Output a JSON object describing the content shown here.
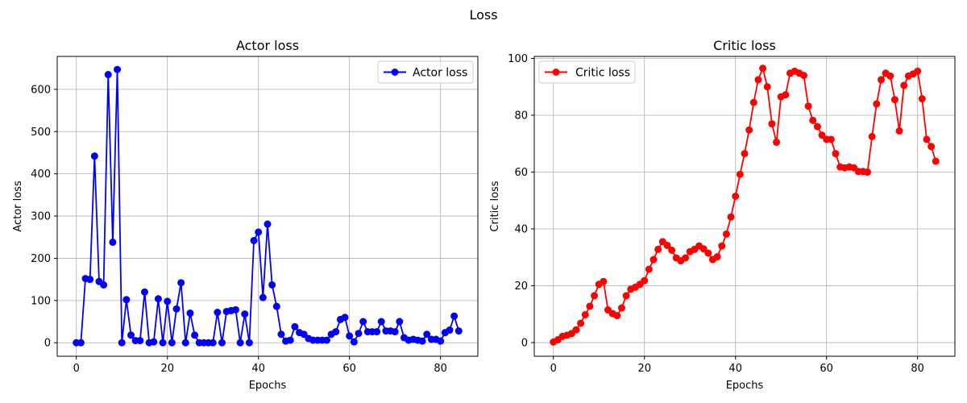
{
  "figure": {
    "suptitle": "Loss"
  },
  "chart_data": [
    {
      "type": "line",
      "title": "Actor loss",
      "xlabel": "Epochs",
      "ylabel": "Actor loss",
      "xlim": [
        -4.2,
        88.2
      ],
      "ylim": [
        -32,
        678
      ],
      "xticks": [
        0,
        20,
        40,
        60,
        80
      ],
      "yticks": [
        0,
        100,
        200,
        300,
        400,
        500,
        600
      ],
      "grid": true,
      "legend_position": "upper right",
      "series": [
        {
          "name": "Actor loss",
          "color": "#0000ff",
          "marker": "circle",
          "x": [
            0,
            1,
            2,
            3,
            4,
            5,
            6,
            7,
            8,
            9,
            10,
            11,
            12,
            13,
            14,
            15,
            16,
            17,
            18,
            19,
            20,
            21,
            22,
            23,
            24,
            25,
            26,
            27,
            28,
            29,
            30,
            31,
            32,
            33,
            34,
            35,
            36,
            37,
            38,
            39,
            40,
            41,
            42,
            43,
            44,
            45,
            46,
            47,
            48,
            49,
            50,
            51,
            52,
            53,
            54,
            55,
            56,
            57,
            58,
            59,
            60,
            61,
            62,
            63,
            64,
            65,
            66,
            67,
            68,
            69,
            70,
            71,
            72,
            73,
            74,
            75,
            76,
            77,
            78,
            79,
            80,
            81,
            82,
            83,
            84
          ],
          "y": [
            0,
            0,
            152,
            150,
            442,
            145,
            137,
            635,
            238,
            647,
            0,
            102,
            18,
            5,
            5,
            120,
            0,
            2,
            104,
            0,
            98,
            0,
            80,
            142,
            0,
            70,
            18,
            0,
            0,
            0,
            0,
            72,
            0,
            74,
            76,
            78,
            0,
            68,
            0,
            242,
            262,
            107,
            281,
            137,
            86,
            20,
            4,
            6,
            38,
            24,
            20,
            10,
            6,
            6,
            6,
            6,
            20,
            26,
            55,
            60,
            16,
            2,
            22,
            50,
            26,
            26,
            26,
            50,
            28,
            28,
            26,
            50,
            12,
            6,
            8,
            6,
            4,
            20,
            8,
            8,
            4,
            24,
            30,
            63,
            28
          ]
        }
      ]
    },
    {
      "type": "line",
      "title": "Critic loss",
      "xlabel": "Epochs",
      "ylabel": "Critic loss",
      "xlim": [
        -4.2,
        88.2
      ],
      "ylim": [
        -4.8,
        100.7
      ],
      "xticks": [
        0,
        20,
        40,
        60,
        80
      ],
      "yticks": [
        0,
        20,
        40,
        60,
        80,
        100
      ],
      "grid": true,
      "legend_position": "upper left",
      "series": [
        {
          "name": "Critic loss",
          "color": "#ff0000",
          "marker": "circle",
          "x": [
            0,
            1,
            2,
            3,
            4,
            5,
            6,
            7,
            8,
            9,
            10,
            11,
            12,
            13,
            14,
            15,
            16,
            17,
            18,
            19,
            20,
            21,
            22,
            23,
            24,
            25,
            26,
            27,
            28,
            29,
            30,
            31,
            32,
            33,
            34,
            35,
            36,
            37,
            38,
            39,
            40,
            41,
            42,
            43,
            44,
            45,
            46,
            47,
            48,
            49,
            50,
            51,
            52,
            53,
            54,
            55,
            56,
            57,
            58,
            59,
            60,
            61,
            62,
            63,
            64,
            65,
            66,
            67,
            68,
            69,
            70,
            71,
            72,
            73,
            74,
            75,
            76,
            77,
            78,
            79,
            80,
            81,
            82,
            83,
            84
          ],
          "y": [
            0.2,
            1.0,
            2.2,
            2.6,
            3.2,
            4.5,
            6.8,
            9.8,
            12.8,
            16.5,
            20.5,
            21.5,
            11.5,
            10.2,
            9.5,
            12.2,
            16.5,
            18.8,
            19.5,
            20.5,
            21.8,
            25.8,
            29.2,
            32.8,
            35.5,
            34.2,
            32.5,
            29.8,
            28.8,
            29.8,
            32.0,
            32.8,
            34.0,
            33.0,
            31.5,
            29.2,
            30.2,
            34.0,
            38.2,
            44.2,
            51.5,
            59.2,
            66.5,
            74.8,
            84.5,
            92.5,
            96.5,
            90.0,
            77.0,
            70.5,
            86.5,
            87.2,
            94.8,
            95.5,
            94.8,
            94.0,
            83.2,
            78.2,
            76.0,
            73.0,
            71.5,
            71.5,
            66.5,
            61.8,
            61.5,
            61.8,
            61.5,
            60.2,
            60.2,
            60.0,
            72.5,
            84.0,
            92.5,
            94.8,
            93.8,
            85.5,
            74.5,
            90.5,
            93.8,
            94.5,
            95.5,
            85.8,
            71.5,
            69.0,
            63.8
          ]
        }
      ]
    }
  ]
}
